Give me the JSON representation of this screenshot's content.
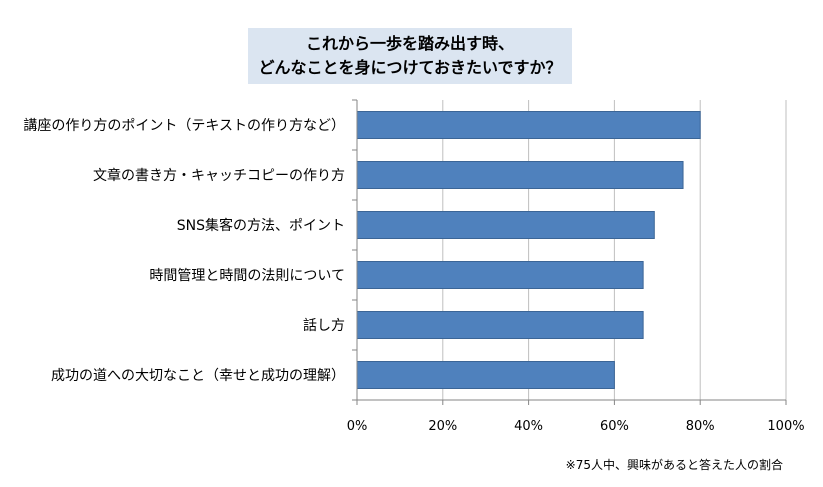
{
  "chart_data": {
    "type": "bar",
    "orientation": "horizontal",
    "title_lines": [
      "これから一歩を踏み出す時、",
      "どんなことを身につけておきたいですか？"
    ],
    "categories": [
      "講座の作り方のポイント（テキストの作り方など）",
      "文章の書き方・キャッチコピーの作り方",
      "SNS集客の方法、ポイント",
      "時間管理と時間の法則について",
      "話し方",
      "成功の道への大切なこと（幸せと成功の理解）"
    ],
    "values": [
      80,
      76,
      69.3,
      66.7,
      66.7,
      60
    ],
    "xlim": [
      0,
      100
    ],
    "xticks": [
      "0%",
      "20%",
      "40%",
      "60%",
      "80%",
      "100%"
    ],
    "xtick_values": [
      0,
      20,
      40,
      60,
      80,
      100
    ],
    "grid": true,
    "legend": "none",
    "footnote": "※75人中、興味があると答えた人の割合",
    "colors": {
      "bar_fill": "#4f81bd",
      "bar_stroke": "#3b6596",
      "title_bg": "#dbe5f1",
      "gridline": "#bfbfbf",
      "axis": "#868686"
    }
  }
}
